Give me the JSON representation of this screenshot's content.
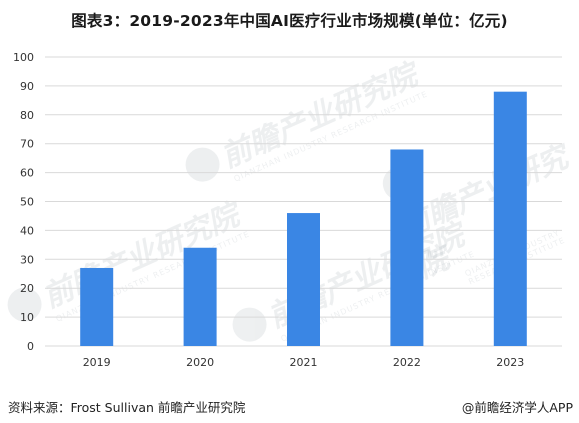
{
  "title": "图表3：2019-2023年中国AI医疗行业市场规模(单位：亿元)",
  "source": "资料来源：Frost Sullivan 前瞻产业研究院",
  "credit": "@前瞻经济学人APP",
  "watermark": {
    "text": "前瞻产业研究院",
    "sub": "QIANZHAN INDUSTRY RESEARCH INSTITUTE"
  },
  "colors": {
    "bar": "#3A86E4",
    "grid": "#D9D9D9",
    "axis_text": "#333333"
  },
  "chart_data": {
    "type": "bar",
    "categories": [
      "2019",
      "2020",
      "2021",
      "2022",
      "2023"
    ],
    "values": [
      27,
      34,
      46,
      68,
      88
    ],
    "title": "图表3：2019-2023年中国AI医疗行业市场规模(单位：亿元)",
    "xlabel": "",
    "ylabel": "",
    "ylim": [
      0,
      100
    ],
    "yticks": [
      0,
      10,
      20,
      30,
      40,
      50,
      60,
      70,
      80,
      90,
      100
    ],
    "grid": true,
    "legend": "none"
  }
}
